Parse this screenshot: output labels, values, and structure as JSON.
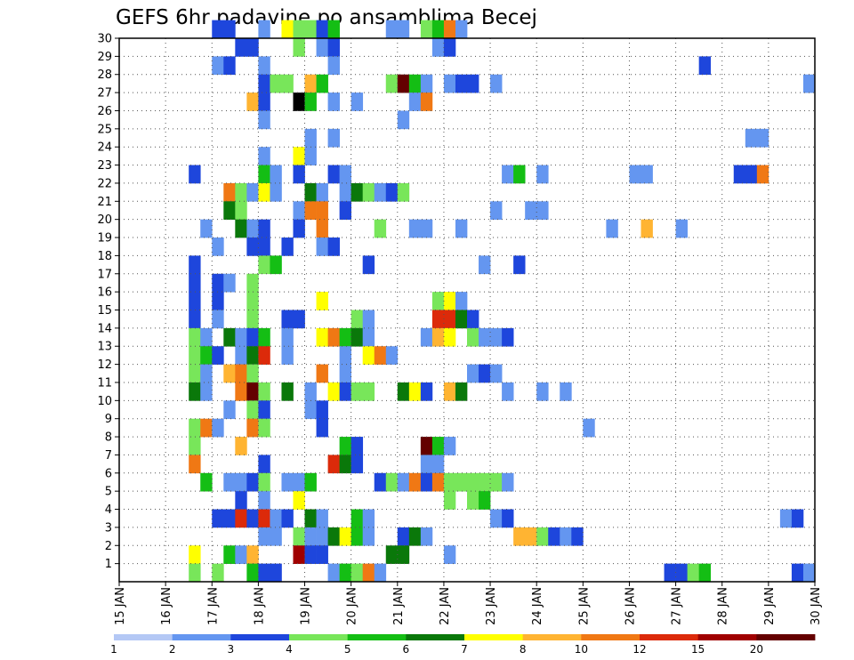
{
  "chart_data": {
    "type": "heatmap",
    "title": "GEFS 6hr padavine po ansamblima Becej",
    "x_tick_labels": [
      "15 JAN",
      "16 JAN",
      "17 JAN",
      "18 JAN",
      "19 JAN",
      "20 JAN",
      "21 JAN",
      "22 JAN",
      "23 JAN",
      "24 JAN",
      "25 JAN",
      "26 JAN",
      "27 JAN",
      "28 JAN",
      "29 JAN",
      "30 JAN"
    ],
    "y_tick_labels": [
      "1",
      "2",
      "3",
      "4",
      "5",
      "6",
      "7",
      "8",
      "9",
      "10",
      "11",
      "12",
      "13",
      "14",
      "15",
      "16",
      "17",
      "18",
      "19",
      "20",
      "21",
      "22",
      "23",
      "24",
      "25",
      "26",
      "27",
      "28",
      "29",
      "30"
    ],
    "xlim": [
      0,
      60
    ],
    "ylim": [
      0,
      30
    ],
    "grid": true,
    "colorbar": {
      "labels": [
        "1",
        "2",
        "3",
        "4",
        "5",
        "6",
        "7",
        "8",
        "10",
        "12",
        "15",
        "20"
      ],
      "colors": [
        "#b4c8f5",
        "#6496f0",
        "#1e46dc",
        "#78e65a",
        "#14be14",
        "#0a780a",
        "#ffff00",
        "#ffb432",
        "#f07814",
        "#dc2a0a",
        "#a00000",
        "#640000"
      ]
    },
    "cells": [
      [
        8,
        30,
        2
      ],
      [
        9,
        30,
        2
      ],
      [
        12,
        30,
        1
      ],
      [
        14,
        30,
        6
      ],
      [
        15,
        30,
        3
      ],
      [
        16,
        30,
        3
      ],
      [
        17,
        30,
        2
      ],
      [
        18,
        30,
        4
      ],
      [
        23,
        30,
        1
      ],
      [
        24,
        30,
        1
      ],
      [
        26,
        30,
        3
      ],
      [
        27,
        30,
        4
      ],
      [
        28,
        30,
        8
      ],
      [
        29,
        30,
        1
      ],
      [
        10,
        29,
        2
      ],
      [
        11,
        29,
        2
      ],
      [
        15,
        29,
        3
      ],
      [
        17,
        29,
        1
      ],
      [
        18,
        29,
        2
      ],
      [
        27,
        29,
        1
      ],
      [
        28,
        29,
        2
      ],
      [
        8,
        28,
        1
      ],
      [
        9,
        28,
        2
      ],
      [
        12,
        28,
        1
      ],
      [
        18,
        28,
        1
      ],
      [
        50,
        28,
        2
      ],
      [
        12,
        27,
        2
      ],
      [
        13,
        27,
        3
      ],
      [
        14,
        27,
        3
      ],
      [
        16,
        27,
        7
      ],
      [
        17,
        27,
        4
      ],
      [
        23,
        27,
        3
      ],
      [
        24,
        27,
        11
      ],
      [
        25,
        27,
        4
      ],
      [
        26,
        27,
        1
      ],
      [
        28,
        27,
        1
      ],
      [
        29,
        27,
        2
      ],
      [
        30,
        27,
        2
      ],
      [
        32,
        27,
        1
      ],
      [
        59,
        27,
        1
      ],
      [
        11,
        26,
        7
      ],
      [
        12,
        26,
        2
      ],
      [
        15,
        26,
        12
      ],
      [
        16,
        26,
        4
      ],
      [
        18,
        26,
        1
      ],
      [
        20,
        26,
        1
      ],
      [
        25,
        26,
        1
      ],
      [
        26,
        26,
        8
      ],
      [
        12,
        25,
        1
      ],
      [
        24,
        25,
        1
      ],
      [
        16,
        24,
        1
      ],
      [
        18,
        24,
        1
      ],
      [
        54,
        24,
        1
      ],
      [
        55,
        24,
        1
      ],
      [
        12,
        23,
        1
      ],
      [
        15,
        23,
        6
      ],
      [
        16,
        23,
        1
      ],
      [
        6,
        22,
        2
      ],
      [
        12,
        22,
        4
      ],
      [
        13,
        22,
        1
      ],
      [
        15,
        22,
        2
      ],
      [
        18,
        22,
        2
      ],
      [
        19,
        22,
        1
      ],
      [
        33,
        22,
        1
      ],
      [
        34,
        22,
        4
      ],
      [
        36,
        22,
        1
      ],
      [
        44,
        22,
        1
      ],
      [
        45,
        22,
        1
      ],
      [
        53,
        22,
        2
      ],
      [
        54,
        22,
        2
      ],
      [
        55,
        22,
        8
      ],
      [
        9,
        21,
        8
      ],
      [
        10,
        21,
        3
      ],
      [
        11,
        21,
        1
      ],
      [
        12,
        21,
        6
      ],
      [
        13,
        21,
        1
      ],
      [
        16,
        21,
        5
      ],
      [
        17,
        21,
        1
      ],
      [
        19,
        21,
        1
      ],
      [
        20,
        21,
        5
      ],
      [
        21,
        21,
        3
      ],
      [
        22,
        21,
        1
      ],
      [
        23,
        21,
        2
      ],
      [
        24,
        21,
        3
      ],
      [
        9,
        20,
        5
      ],
      [
        10,
        20,
        3
      ],
      [
        15,
        20,
        1
      ],
      [
        16,
        20,
        8
      ],
      [
        17,
        20,
        8
      ],
      [
        19,
        20,
        2
      ],
      [
        32,
        20,
        1
      ],
      [
        35,
        20,
        1
      ],
      [
        36,
        20,
        1
      ],
      [
        7,
        19,
        1
      ],
      [
        10,
        19,
        5
      ],
      [
        11,
        19,
        1
      ],
      [
        12,
        19,
        2
      ],
      [
        15,
        19,
        2
      ],
      [
        17,
        19,
        8
      ],
      [
        22,
        19,
        3
      ],
      [
        25,
        19,
        1
      ],
      [
        26,
        19,
        1
      ],
      [
        29,
        19,
        1
      ],
      [
        42,
        19,
        1
      ],
      [
        45,
        19,
        7
      ],
      [
        48,
        19,
        1
      ],
      [
        8,
        18,
        1
      ],
      [
        11,
        18,
        2
      ],
      [
        12,
        18,
        2
      ],
      [
        14,
        18,
        2
      ],
      [
        17,
        18,
        1
      ],
      [
        18,
        18,
        2
      ],
      [
        6,
        17,
        2
      ],
      [
        12,
        17,
        3
      ],
      [
        13,
        17,
        4
      ],
      [
        21,
        17,
        2
      ],
      [
        31,
        17,
        1
      ],
      [
        34,
        17,
        2
      ],
      [
        6,
        16,
        2
      ],
      [
        8,
        16,
        2
      ],
      [
        9,
        16,
        1
      ],
      [
        11,
        16,
        3
      ],
      [
        6,
        15,
        2
      ],
      [
        8,
        15,
        2
      ],
      [
        11,
        15,
        3
      ],
      [
        17,
        15,
        6
      ],
      [
        27,
        15,
        3
      ],
      [
        28,
        15,
        6
      ],
      [
        29,
        15,
        1
      ],
      [
        6,
        14,
        2
      ],
      [
        8,
        14,
        1
      ],
      [
        11,
        14,
        3
      ],
      [
        14,
        14,
        2
      ],
      [
        15,
        14,
        2
      ],
      [
        20,
        14,
        3
      ],
      [
        21,
        14,
        1
      ],
      [
        27,
        14,
        9
      ],
      [
        28,
        14,
        9
      ],
      [
        29,
        14,
        5
      ],
      [
        30,
        14,
        2
      ],
      [
        6,
        13,
        3
      ],
      [
        7,
        13,
        1
      ],
      [
        9,
        13,
        5
      ],
      [
        10,
        13,
        1
      ],
      [
        11,
        13,
        2
      ],
      [
        12,
        13,
        4
      ],
      [
        14,
        13,
        1
      ],
      [
        17,
        13,
        6
      ],
      [
        18,
        13,
        8
      ],
      [
        19,
        13,
        4
      ],
      [
        20,
        13,
        5
      ],
      [
        21,
        13,
        1
      ],
      [
        26,
        13,
        1
      ],
      [
        27,
        13,
        7
      ],
      [
        28,
        13,
        6
      ],
      [
        30,
        13,
        3
      ],
      [
        31,
        13,
        1
      ],
      [
        32,
        13,
        1
      ],
      [
        33,
        13,
        2
      ],
      [
        6,
        12,
        3
      ],
      [
        7,
        12,
        4
      ],
      [
        8,
        12,
        2
      ],
      [
        10,
        12,
        1
      ],
      [
        11,
        12,
        5
      ],
      [
        12,
        12,
        9
      ],
      [
        14,
        12,
        1
      ],
      [
        19,
        12,
        1
      ],
      [
        21,
        12,
        6
      ],
      [
        22,
        12,
        8
      ],
      [
        23,
        12,
        1
      ],
      [
        6,
        11,
        3
      ],
      [
        7,
        11,
        1
      ],
      [
        9,
        11,
        7
      ],
      [
        10,
        11,
        8
      ],
      [
        11,
        11,
        3
      ],
      [
        17,
        11,
        8
      ],
      [
        19,
        11,
        1
      ],
      [
        30,
        11,
        1
      ],
      [
        31,
        11,
        2
      ],
      [
        32,
        11,
        1
      ],
      [
        6,
        10,
        5
      ],
      [
        7,
        10,
        1
      ],
      [
        10,
        10,
        8
      ],
      [
        11,
        10,
        11
      ],
      [
        12,
        10,
        3
      ],
      [
        14,
        10,
        5
      ],
      [
        16,
        10,
        1
      ],
      [
        18,
        10,
        6
      ],
      [
        19,
        10,
        2
      ],
      [
        20,
        10,
        3
      ],
      [
        21,
        10,
        3
      ],
      [
        24,
        10,
        5
      ],
      [
        25,
        10,
        6
      ],
      [
        26,
        10,
        2
      ],
      [
        28,
        10,
        7
      ],
      [
        29,
        10,
        5
      ],
      [
        33,
        10,
        1
      ],
      [
        36,
        10,
        1
      ],
      [
        38,
        10,
        1
      ],
      [
        9,
        9,
        1
      ],
      [
        11,
        9,
        3
      ],
      [
        12,
        9,
        2
      ],
      [
        16,
        9,
        1
      ],
      [
        17,
        9,
        2
      ],
      [
        6,
        8,
        3
      ],
      [
        7,
        8,
        8
      ],
      [
        8,
        8,
        1
      ],
      [
        11,
        8,
        8
      ],
      [
        12,
        8,
        3
      ],
      [
        17,
        8,
        2
      ],
      [
        40,
        8,
        1
      ],
      [
        6,
        7,
        3
      ],
      [
        10,
        7,
        7
      ],
      [
        19,
        7,
        4
      ],
      [
        20,
        7,
        2
      ],
      [
        26,
        7,
        11
      ],
      [
        27,
        7,
        4
      ],
      [
        28,
        7,
        1
      ],
      [
        6,
        6,
        8
      ],
      [
        12,
        6,
        2
      ],
      [
        18,
        6,
        9
      ],
      [
        19,
        6,
        5
      ],
      [
        20,
        6,
        2
      ],
      [
        26,
        6,
        1
      ],
      [
        27,
        6,
        1
      ],
      [
        7,
        5,
        4
      ],
      [
        9,
        5,
        1
      ],
      [
        10,
        5,
        1
      ],
      [
        11,
        5,
        2
      ],
      [
        12,
        5,
        3
      ],
      [
        14,
        5,
        1
      ],
      [
        15,
        5,
        1
      ],
      [
        16,
        5,
        4
      ],
      [
        22,
        5,
        2
      ],
      [
        23,
        5,
        3
      ],
      [
        24,
        5,
        1
      ],
      [
        25,
        5,
        8
      ],
      [
        26,
        5,
        2
      ],
      [
        27,
        5,
        8
      ],
      [
        28,
        5,
        3
      ],
      [
        29,
        5,
        3
      ],
      [
        30,
        5,
        3
      ],
      [
        31,
        5,
        3
      ],
      [
        32,
        5,
        3
      ],
      [
        33,
        5,
        1
      ],
      [
        10,
        4,
        2
      ],
      [
        12,
        4,
        1
      ],
      [
        15,
        4,
        6
      ],
      [
        28,
        4,
        3
      ],
      [
        30,
        4,
        3
      ],
      [
        31,
        4,
        4
      ],
      [
        8,
        3,
        2
      ],
      [
        9,
        3,
        2
      ],
      [
        10,
        3,
        9
      ],
      [
        11,
        3,
        2
      ],
      [
        12,
        3,
        9
      ],
      [
        13,
        3,
        1
      ],
      [
        14,
        3,
        2
      ],
      [
        16,
        3,
        5
      ],
      [
        17,
        3,
        1
      ],
      [
        20,
        3,
        4
      ],
      [
        21,
        3,
        1
      ],
      [
        32,
        3,
        1
      ],
      [
        33,
        3,
        2
      ],
      [
        57,
        3,
        1
      ],
      [
        58,
        3,
        2
      ],
      [
        12,
        2,
        1
      ],
      [
        13,
        2,
        1
      ],
      [
        15,
        2,
        3
      ],
      [
        16,
        2,
        1
      ],
      [
        17,
        2,
        1
      ],
      [
        18,
        2,
        5
      ],
      [
        19,
        2,
        6
      ],
      [
        20,
        2,
        4
      ],
      [
        21,
        2,
        1
      ],
      [
        24,
        2,
        2
      ],
      [
        25,
        2,
        5
      ],
      [
        26,
        2,
        1
      ],
      [
        34,
        2,
        7
      ],
      [
        35,
        2,
        7
      ],
      [
        36,
        2,
        3
      ],
      [
        37,
        2,
        2
      ],
      [
        38,
        2,
        1
      ],
      [
        39,
        2,
        2
      ],
      [
        6,
        1,
        6
      ],
      [
        9,
        1,
        4
      ],
      [
        10,
        1,
        1
      ],
      [
        11,
        1,
        7
      ],
      [
        15,
        1,
        10
      ],
      [
        16,
        1,
        2
      ],
      [
        17,
        1,
        2
      ],
      [
        23,
        1,
        5
      ],
      [
        24,
        1,
        5
      ],
      [
        28,
        1,
        1
      ],
      [
        6,
        0,
        3
      ],
      [
        8,
        0,
        3
      ],
      [
        11,
        0,
        4
      ],
      [
        12,
        0,
        2
      ],
      [
        13,
        0,
        2
      ],
      [
        18,
        0,
        1
      ],
      [
        19,
        0,
        4
      ],
      [
        20,
        0,
        3
      ],
      [
        21,
        0,
        8
      ],
      [
        22,
        0,
        1
      ],
      [
        47,
        0,
        2
      ],
      [
        48,
        0,
        2
      ],
      [
        49,
        0,
        3
      ],
      [
        50,
        0,
        4
      ],
      [
        58,
        0,
        2
      ],
      [
        59,
        0,
        1
      ]
    ]
  }
}
